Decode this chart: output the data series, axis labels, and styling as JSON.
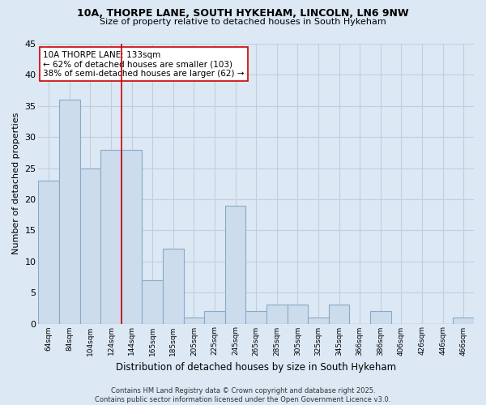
{
  "title_line1": "10A, THORPE LANE, SOUTH HYKEHAM, LINCOLN, LN6 9NW",
  "title_line2": "Size of property relative to detached houses in South Hykeham",
  "xlabel": "Distribution of detached houses by size in South Hykeham",
  "ylabel": "Number of detached properties",
  "bar_color": "#ccdcec",
  "bar_edge_color": "#88aac8",
  "background_color": "#dce8f4",
  "grid_color": "#c0cfe0",
  "categories": [
    "64sqm",
    "84sqm",
    "104sqm",
    "124sqm",
    "144sqm",
    "165sqm",
    "185sqm",
    "205sqm",
    "225sqm",
    "245sqm",
    "265sqm",
    "285sqm",
    "305sqm",
    "325sqm",
    "345sqm",
    "366sqm",
    "386sqm",
    "406sqm",
    "426sqm",
    "446sqm",
    "466sqm"
  ],
  "values": [
    23,
    36,
    25,
    28,
    28,
    7,
    12,
    1,
    2,
    19,
    2,
    3,
    3,
    1,
    3,
    0,
    2,
    0,
    0,
    0,
    1
  ],
  "ylim": [
    0,
    45
  ],
  "yticks": [
    0,
    5,
    10,
    15,
    20,
    25,
    30,
    35,
    40,
    45
  ],
  "vline_x": 3.5,
  "vline_color": "#cc0000",
  "annotation_text": "10A THORPE LANE: 133sqm\n← 62% of detached houses are smaller (103)\n38% of semi-detached houses are larger (62) →",
  "annotation_box_color": "#ffffff",
  "annotation_box_edge": "#cc0000",
  "footer": "Contains HM Land Registry data © Crown copyright and database right 2025.\nContains public sector information licensed under the Open Government Licence v3.0."
}
